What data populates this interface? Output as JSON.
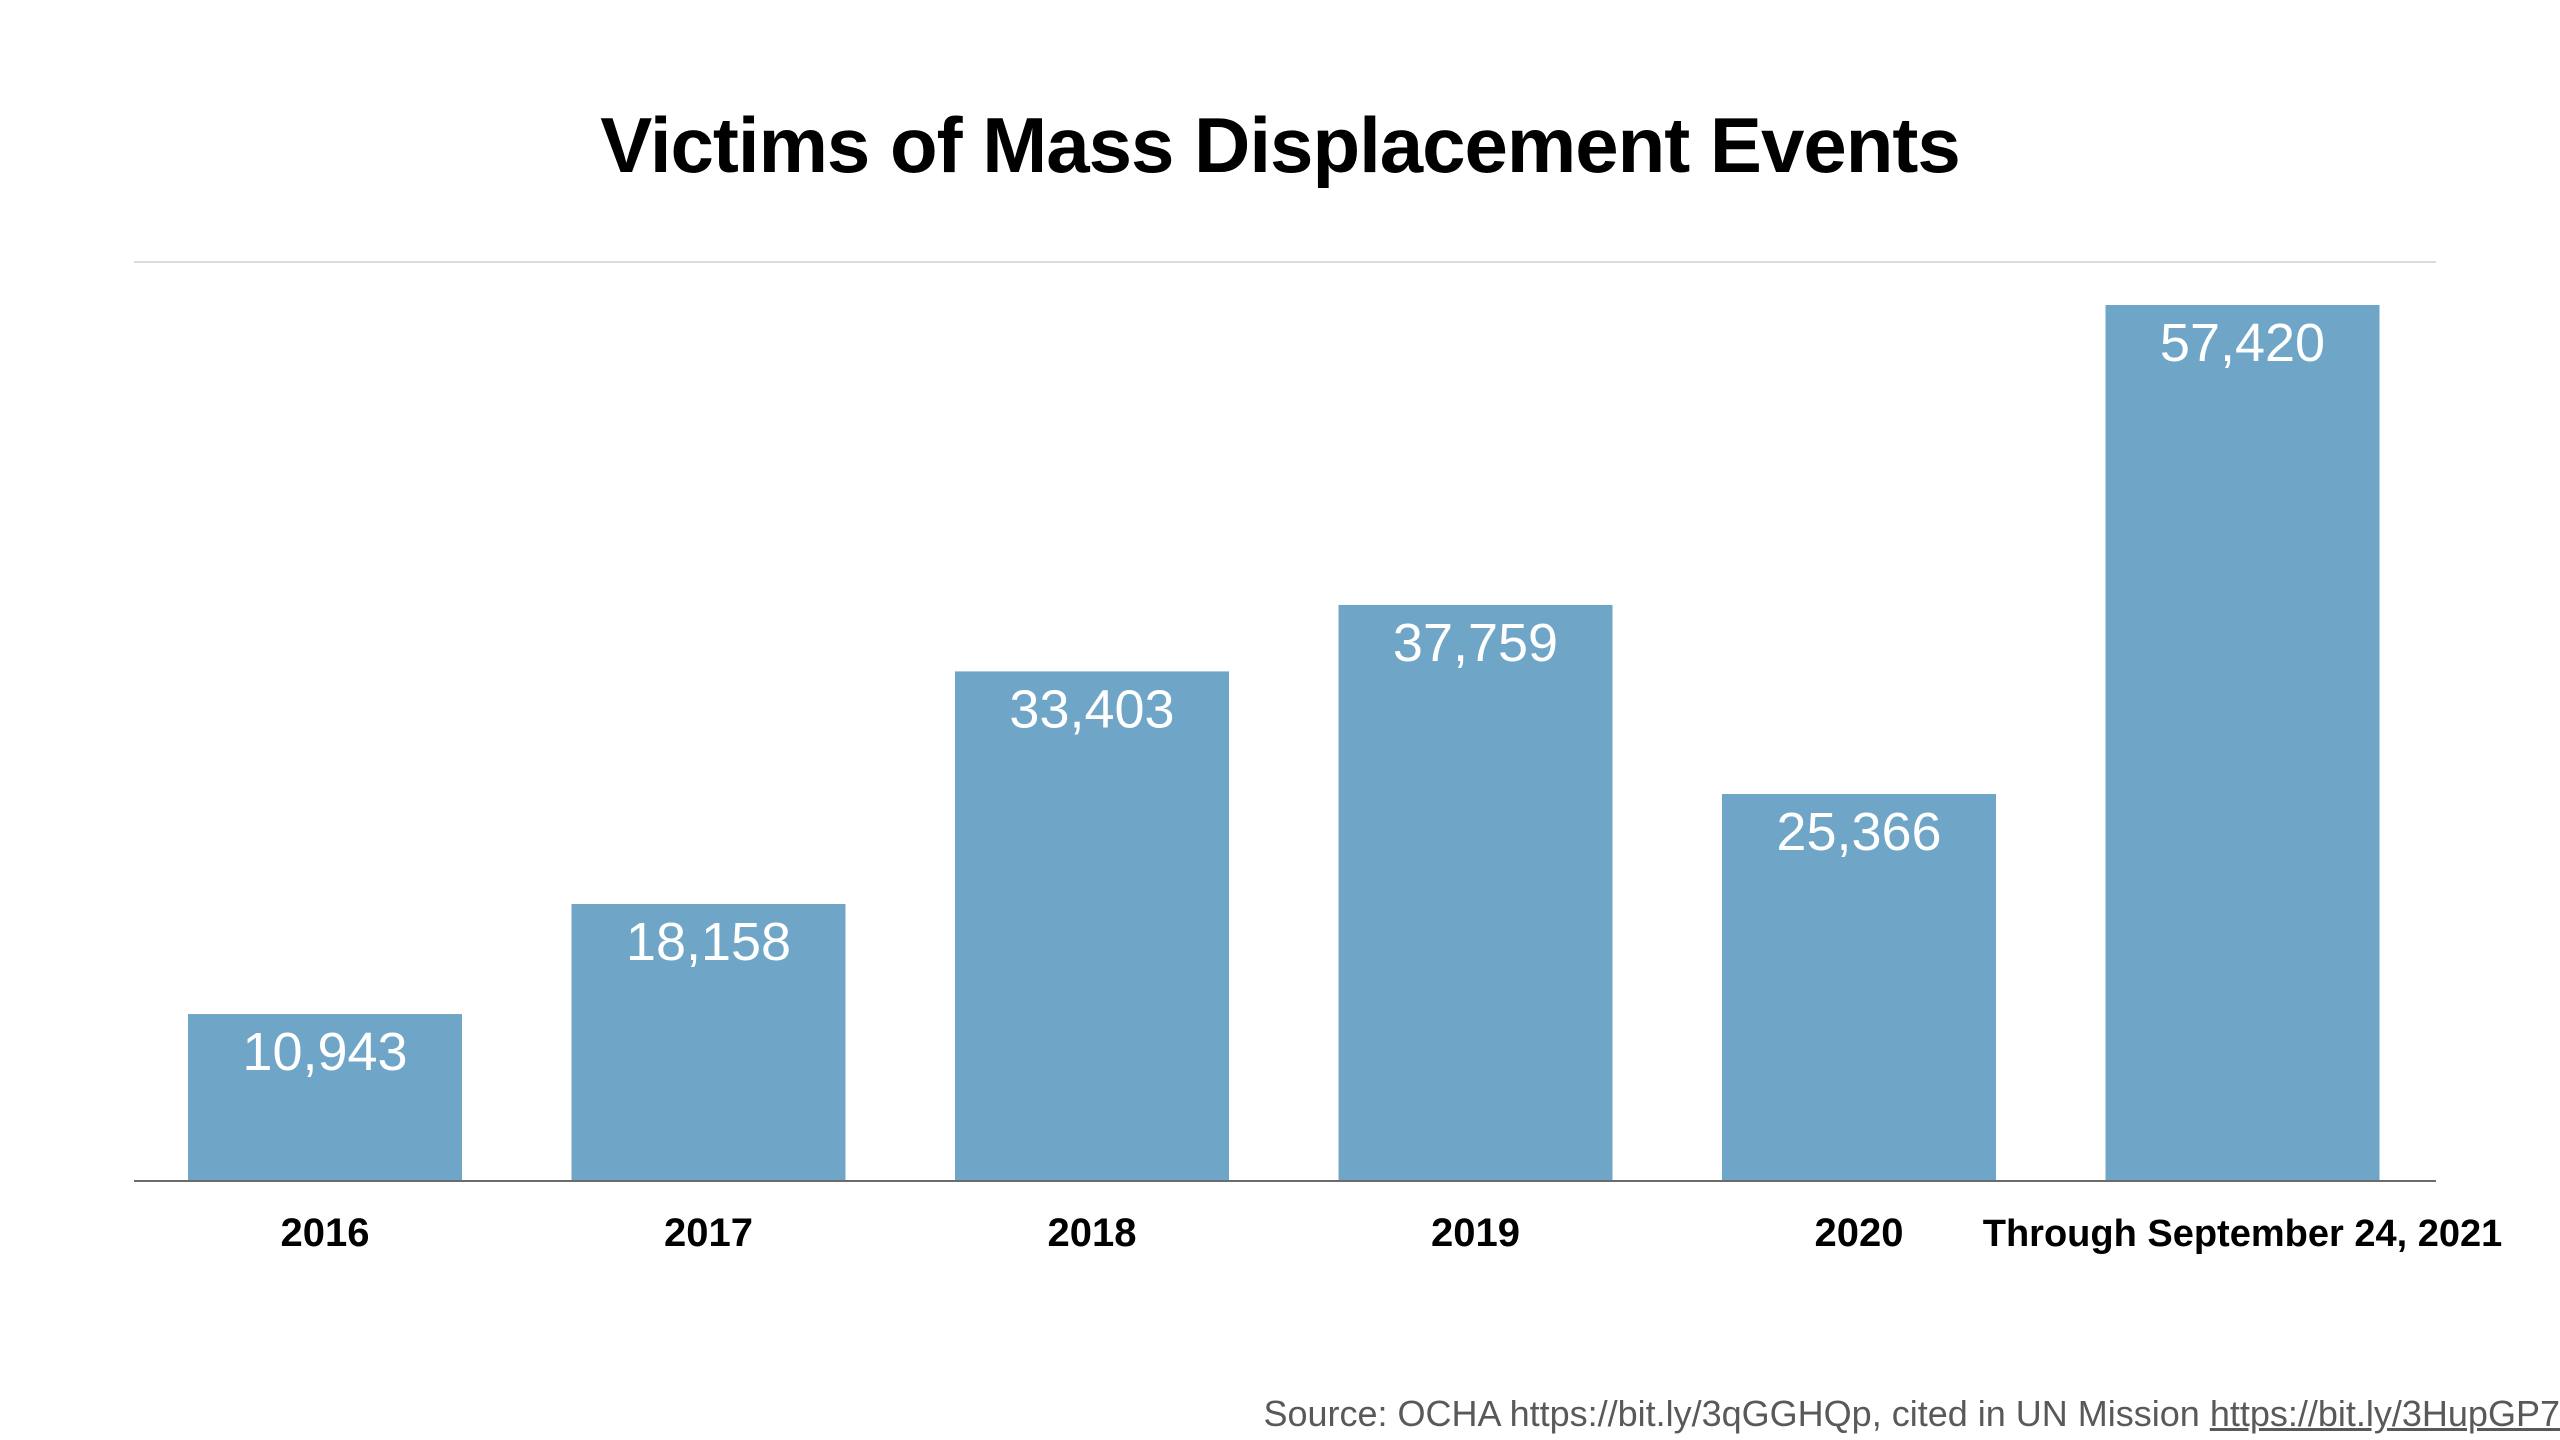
{
  "chart_data": {
    "type": "bar",
    "title": "Victims of Mass Displacement Events",
    "categories": [
      "2016",
      "2017",
      "2018",
      "2019",
      "2020",
      "Through September 24, 2021"
    ],
    "values": [
      10943,
      18158,
      33403,
      37759,
      25366,
      57420
    ],
    "value_labels": [
      "10,943",
      "18,158",
      "33,403",
      "37,759",
      "25,366",
      "57,420"
    ],
    "xlabel": "",
    "ylabel": "",
    "ylim": [
      0,
      60000
    ],
    "grid": false,
    "legend": "none",
    "bar_color": "#6fa6c7",
    "value_label_color": "#ffffff"
  },
  "source": {
    "text": "Source: OCHA https://bit.ly/3qGGHQp, cited in UN Mission ",
    "link_text": "https://bit.ly/3HupGP7"
  }
}
